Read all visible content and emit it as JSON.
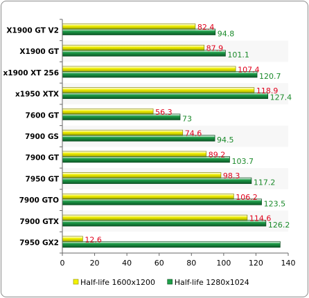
{
  "chart_data": {
    "type": "bar",
    "orientation": "horizontal",
    "categories": [
      "X1900 GT V2",
      "X1900 GT",
      "x1900 XT 256",
      "x1950 XTX",
      "7600 GT",
      "7900 GS",
      "7900 GT",
      "7950 GT",
      "7900 GTO",
      "7900 GTX",
      "7950 GX2"
    ],
    "series": [
      {
        "name": "Half-life 1600x1200",
        "color": "#f2f200",
        "values": [
          82.4,
          87.9,
          107.4,
          118.9,
          56.3,
          74.6,
          89.2,
          98.3,
          106.2,
          114.6,
          12.6
        ],
        "labels": [
          "82.4",
          "87.9",
          "107.4",
          "118.9",
          "56.3",
          "74.6",
          "89.2",
          "98.3",
          "106.2",
          "114.6",
          "12.6"
        ]
      },
      {
        "name": "Half-life 1280x1024",
        "color": "#1fa04a",
        "values": [
          94.8,
          101.1,
          120.7,
          127.4,
          73,
          94.5,
          103.7,
          117.2,
          123.5,
          126.2,
          135
        ],
        "labels": [
          "94.8",
          "101.1",
          "120.7",
          "127.4",
          "73",
          "94.5",
          "103.7",
          "117.2",
          "123.5",
          "126.2",
          ""
        ]
      }
    ],
    "xlim": [
      0,
      140
    ],
    "ticks": [
      "0",
      "20",
      "40",
      "60",
      "80",
      "100",
      "120",
      "140"
    ],
    "legend_position": "bottom",
    "grid": false
  }
}
